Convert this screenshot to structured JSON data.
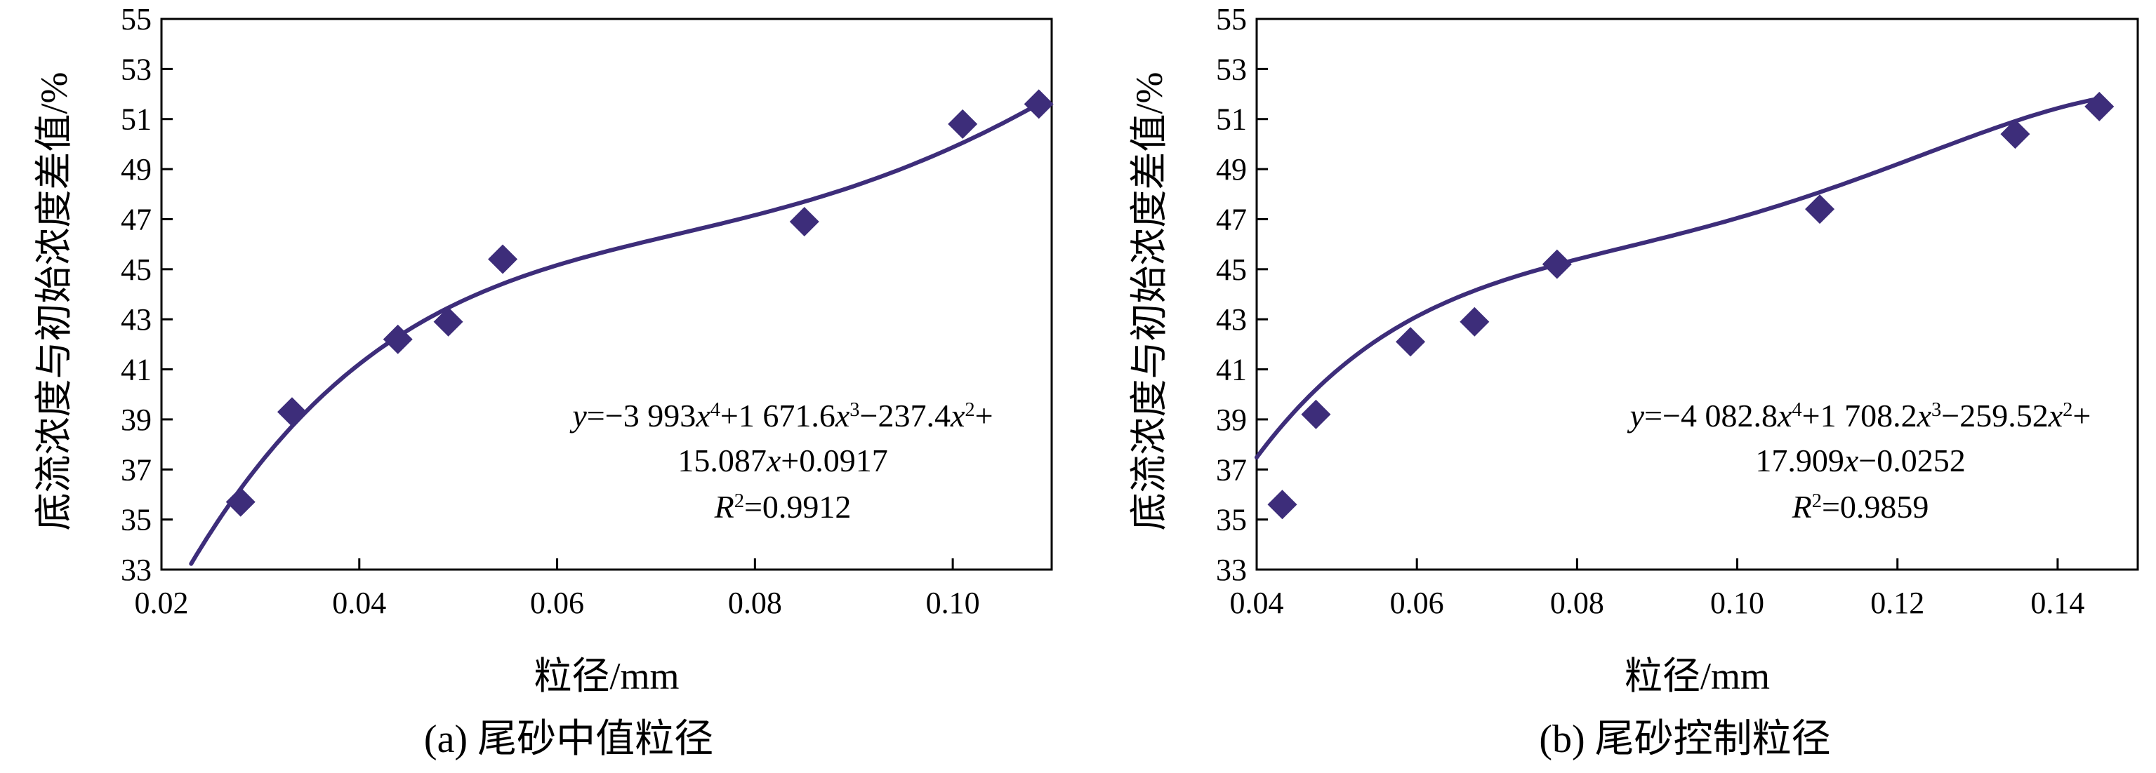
{
  "colors": {
    "series": "#3d2d7a",
    "axis": "#000000",
    "background": "#ffffff"
  },
  "chart_data": [
    {
      "type": "scatter",
      "panel_caption": "(a) 尾砂中值粒径",
      "xlabel": "粒径/mm",
      "ylabel": "底流浓度与初始浓度差值/%",
      "xlim": [
        0.02,
        0.11
      ],
      "ylim": [
        33,
        55
      ],
      "x_ticks": [
        0.02,
        0.04,
        0.06,
        0.08,
        0.1
      ],
      "x_tick_labels": [
        "0.02",
        "0.04",
        "0.06",
        "0.08",
        "0.10"
      ],
      "y_ticks": [
        33,
        35,
        37,
        39,
        41,
        43,
        45,
        47,
        49,
        51,
        53,
        55
      ],
      "y_tick_labels": [
        "33",
        "35",
        "37",
        "39",
        "41",
        "43",
        "45",
        "47",
        "49",
        "51",
        "53",
        "55"
      ],
      "marker": "diamond",
      "points": [
        {
          "x": 0.028,
          "y": 35.7
        },
        {
          "x": 0.0332,
          "y": 39.3
        },
        {
          "x": 0.0439,
          "y": 42.2
        },
        {
          "x": 0.049,
          "y": 42.9
        },
        {
          "x": 0.0545,
          "y": 45.4
        },
        {
          "x": 0.085,
          "y": 46.9
        },
        {
          "x": 0.101,
          "y": 50.8
        },
        {
          "x": 0.1087,
          "y": 51.6
        }
      ],
      "fit": {
        "type": "polynomial",
        "coefficients_high_to_low": [
          -3993,
          1671.6,
          -237.4,
          15.087,
          0.0917
        ],
        "y_scale": 100,
        "x_range": [
          0.023,
          0.1087
        ]
      },
      "equation_line1": "y=−3 993x⁴+1 671.6x³−237.4x²+",
      "equation_line2": "15.087x+0.0917",
      "r2_label": "R²=0.9912"
    },
    {
      "type": "scatter",
      "panel_caption": "(b) 尾砂控制粒径",
      "xlabel": "粒径/mm",
      "ylabel": "底流浓度与初始浓度差值/%",
      "xlim": [
        0.04,
        0.15
      ],
      "ylim": [
        33,
        55
      ],
      "x_ticks": [
        0.04,
        0.06,
        0.08,
        0.1,
        0.12,
        0.14
      ],
      "x_tick_labels": [
        "0.04",
        "0.06",
        "0.08",
        "0.10",
        "0.12",
        "0.14"
      ],
      "y_ticks": [
        33,
        35,
        37,
        39,
        41,
        43,
        45,
        47,
        49,
        51,
        53,
        55
      ],
      "y_tick_labels": [
        "33",
        "35",
        "37",
        "39",
        "41",
        "43",
        "45",
        "47",
        "49",
        "51",
        "53",
        "55"
      ],
      "marker": "diamond",
      "points": [
        {
          "x": 0.0432,
          "y": 35.6
        },
        {
          "x": 0.0474,
          "y": 39.2
        },
        {
          "x": 0.0592,
          "y": 42.1
        },
        {
          "x": 0.0672,
          "y": 42.9
        },
        {
          "x": 0.0775,
          "y": 45.2
        },
        {
          "x": 0.1103,
          "y": 47.4
        },
        {
          "x": 0.1347,
          "y": 50.4
        },
        {
          "x": 0.1452,
          "y": 51.5
        }
      ],
      "fit": {
        "type": "polynomial",
        "coefficients_high_to_low": [
          -4082.8,
          1708.2,
          -259.52,
          17.909,
          -0.0252
        ],
        "y_scale": 100,
        "x_range": [
          0.04,
          0.1452
        ]
      },
      "equation_line1": "y=−4 082.8x⁴+1 708.2x³−259.52x²+",
      "equation_line2": "17.909x−0.0252",
      "r2_label": "R²=0.9859"
    }
  ]
}
